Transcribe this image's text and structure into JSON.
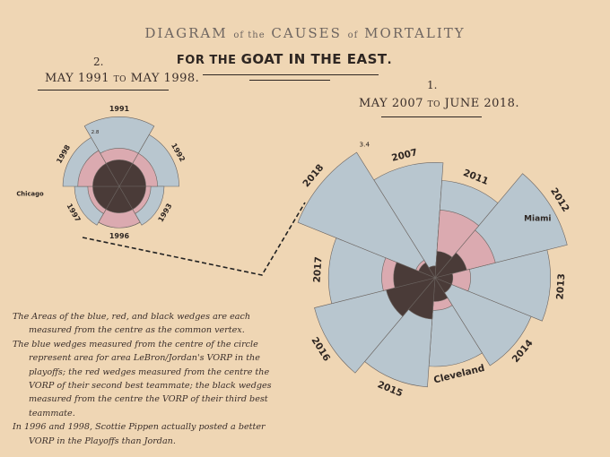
{
  "title": {
    "word1": "DIAGRAM",
    "of1": "of the",
    "word2": "CAUSES",
    "of2": "of",
    "word3": "MORTALITY"
  },
  "subtitle": {
    "part1": "FOR THE",
    "part2": "GOAT IN THE EAST",
    "part3": "."
  },
  "section_left": {
    "number": "2.",
    "from": "MAY 1991",
    "to": "TO",
    "until": "MAY 1998."
  },
  "section_right": {
    "number": "1.",
    "from": "MAY 2007",
    "to": "TO",
    "until": "JUNE 2018."
  },
  "notes": [
    "The Areas of the blue, red, and black wedges are each measured from the centre as the common vertex.",
    "The blue wedges measured from the centre of the circle represent area for area LeBron/Jordan's VORP in the playoffs; the red wedges measured from the centre the VORP of their second best teammate; the black wedges measured from the centre the VORP of their third best teammate.",
    "In 1996 and 1998, Scottie Pippen actually posted a better VORP in the Playoffs than Jordan."
  ],
  "colors": {
    "background": "#efd6b4",
    "blue": "#b8c6cf",
    "red": "#dbaab0",
    "black": "#4a3b38",
    "stroke": "#6b6460"
  },
  "chart_data": [
    {
      "type": "polar-area",
      "scale_label": "2.8",
      "start_angle_deg": -30,
      "wedges": [
        {
          "label": "1991",
          "blue": 2.1,
          "red": 1.15,
          "black": 0.8
        },
        {
          "label": "1992",
          "blue": 1.8,
          "red": 1.15,
          "black": 0.8
        },
        {
          "label": "1993",
          "blue": 1.35,
          "red": 0.95,
          "black": 0.8
        },
        {
          "label": "1996",
          "blue": 1.25,
          "red": 1.25,
          "black": 0.8
        },
        {
          "label": "1997",
          "blue": 1.35,
          "red": 0.95,
          "black": 0.8
        },
        {
          "label": "1998",
          "blue": 1.7,
          "red": 1.25,
          "black": 0.8
        }
      ],
      "annotations": [
        {
          "text": "Chicago",
          "angle_deg": 265,
          "radius": 2.7
        }
      ]
    },
    {
      "type": "polar-area",
      "scale_label": "3.4",
      "start_angle_deg": -32,
      "wedges": [
        {
          "label": "2007",
          "blue": 1.95,
          "red": 0.2,
          "black": 0.2
        },
        {
          "label": "2011",
          "blue": 1.65,
          "red": 1.15,
          "black": 0.45
        },
        {
          "label": "2012",
          "blue": 2.3,
          "red": 1.05,
          "black": 0.55
        },
        {
          "label": "2013",
          "blue": 1.95,
          "red": 0.6,
          "black": 0.3
        },
        {
          "label": "2014",
          "blue": 1.75,
          "red": 0.3,
          "black": 0.3
        },
        {
          "label": "Cleveland",
          "blue": 1.5,
          "red": 0.55,
          "black": 0.4
        },
        {
          "label": "2015",
          "blue": 1.85,
          "red": 0.65,
          "black": 0.7
        },
        {
          "label": "2016",
          "blue": 2.1,
          "red": 0.85,
          "black": 0.85
        },
        {
          "label": "2017",
          "blue": 1.8,
          "red": 0.9,
          "black": 0.7
        },
        {
          "label": "2018",
          "blue": 2.5,
          "red": 0.35,
          "black": 0.3
        }
      ],
      "annotations": [
        {
          "text": "Miami",
          "angle_deg": 60,
          "radius": 2.0
        }
      ]
    }
  ]
}
